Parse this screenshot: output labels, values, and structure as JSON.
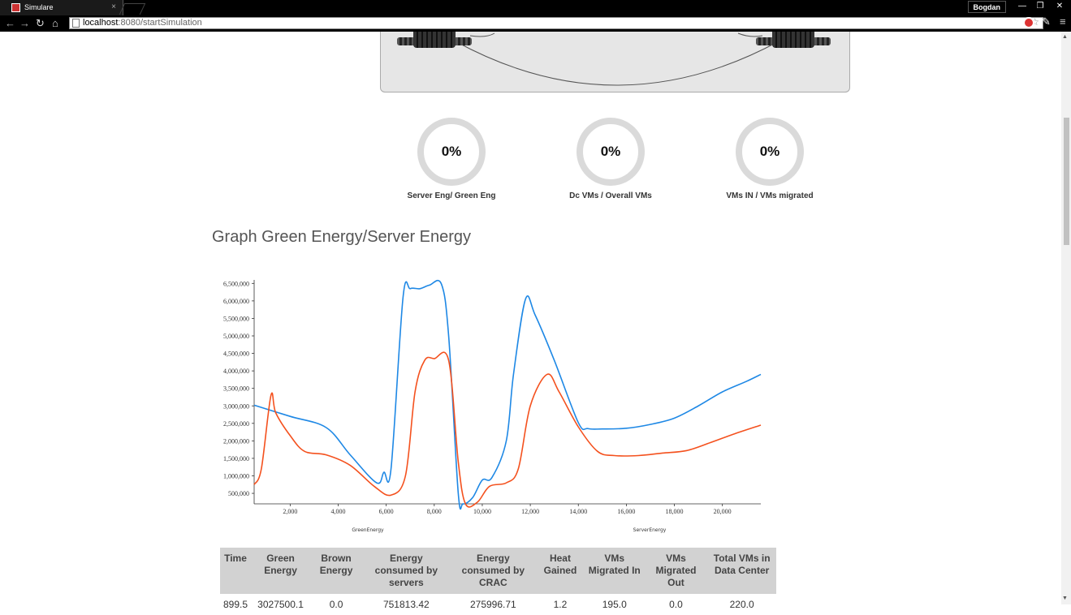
{
  "browser": {
    "tab_title": "Simulare",
    "tab_close": "×",
    "user": "Bogdan",
    "url_host": "localhost",
    "url_path": ":8080/startSimulation"
  },
  "gauges": [
    {
      "value": "0%",
      "label": "Server Eng/ Green Eng"
    },
    {
      "value": "0%",
      "label": "Dc VMs / Overall VMs"
    },
    {
      "value": "0%",
      "label": "VMs IN / VMs migrated"
    }
  ],
  "graph_title": "Graph Green Energy/Server Energy",
  "chart_data": {
    "type": "line",
    "title": "",
    "xlim": [
      500,
      21600
    ],
    "ylim": [
      200000,
      6600000
    ],
    "x_ticks": [
      "2,000",
      "4,000",
      "6,000",
      "8,000",
      "10,000",
      "12,000",
      "14,000",
      "16,000",
      "18,000",
      "20,000"
    ],
    "y_ticks": [
      "500,000",
      "1,000,000",
      "1,500,000",
      "2,000,000",
      "2,500,000",
      "3,000,000",
      "3,500,000",
      "4,000,000",
      "4,500,000",
      "5,000,000",
      "5,500,000",
      "6,000,000",
      "6,500,000"
    ],
    "legend": [
      "GreenEnergy",
      "ServerEnergy"
    ],
    "series": [
      {
        "name": "GreenEnergy",
        "color": "#1e88e5",
        "x": [
          500,
          2000,
          3500,
          4500,
          5600,
          5900,
          6200,
          6700,
          7000,
          7400,
          7800,
          8300,
          8600,
          9000,
          9200,
          9600,
          10000,
          10400,
          11000,
          11300,
          11800,
          12200,
          13000,
          14000,
          14400,
          15000,
          16000,
          17000,
          18000,
          19000,
          20000,
          21000,
          21600
        ],
        "y": [
          3020000,
          2700000,
          2380000,
          1600000,
          800000,
          1100000,
          1200000,
          6100000,
          6350000,
          6350000,
          6450000,
          6480000,
          5000000,
          500000,
          180000,
          380000,
          880000,
          950000,
          2000000,
          3900000,
          6050000,
          5600000,
          4300000,
          2520000,
          2350000,
          2340000,
          2360000,
          2470000,
          2650000,
          3000000,
          3400000,
          3700000,
          3900000
        ]
      },
      {
        "name": "ServerEnergy",
        "color": "#f4511e",
        "x": [
          500,
          800,
          1200,
          1400,
          2000,
          2600,
          3500,
          4500,
          5500,
          6200,
          6800,
          7200,
          7600,
          8000,
          8600,
          9000,
          9300,
          9800,
          10300,
          11000,
          11500,
          12000,
          12700,
          13200,
          14000,
          14800,
          15500,
          16500,
          17500,
          18500,
          19500,
          20500,
          21600
        ],
        "y": [
          750000,
          1200000,
          3300000,
          2800000,
          2150000,
          1700000,
          1600000,
          1300000,
          700000,
          450000,
          1000000,
          3400000,
          4300000,
          4350000,
          4300000,
          1400000,
          100000,
          250000,
          700000,
          800000,
          1200000,
          3000000,
          3900000,
          3400000,
          2400000,
          1700000,
          1580000,
          1580000,
          1650000,
          1720000,
          1950000,
          2200000,
          2450000
        ]
      }
    ]
  },
  "table": {
    "headers": [
      "Time",
      "Green Energy",
      "Brown Energy",
      "Energy consumed by servers",
      "Energy consumed by CRAC",
      "Heat Gained",
      "VMs Migrated In",
      "VMs Migrated Out",
      "Total VMs in Data Center"
    ],
    "row": [
      "899.5",
      "3027500.1",
      "0.0",
      "751813.42",
      "275996.71",
      "1.2",
      "195.0",
      "0.0",
      "220.0"
    ]
  }
}
